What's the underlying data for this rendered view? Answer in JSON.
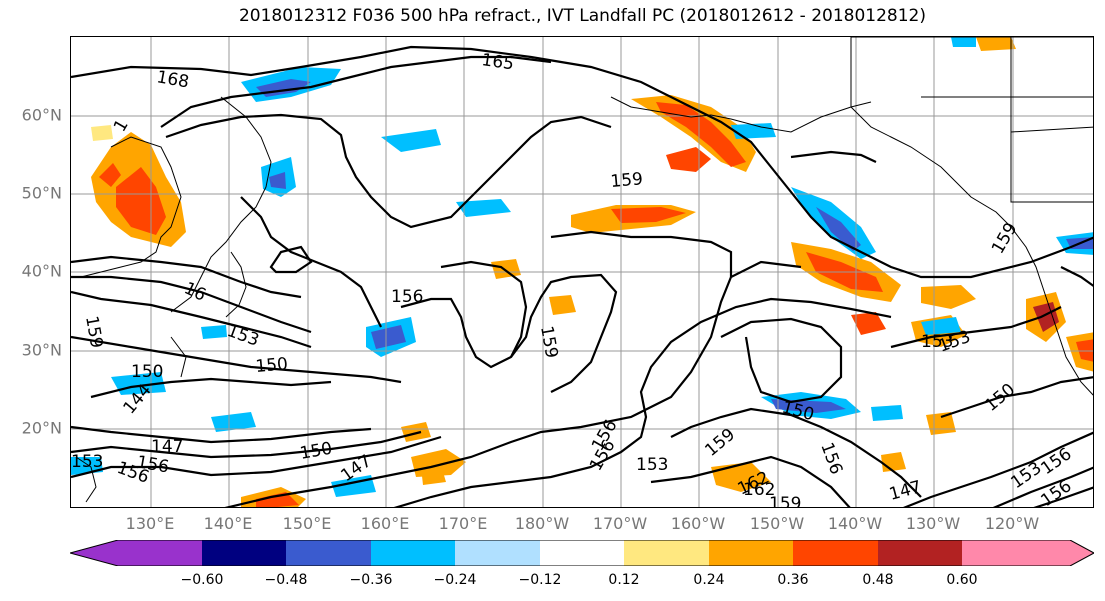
{
  "title": "2018012312 F036 500 hPa refract., IVT Landfall PC (2018012612 - 2018012812)",
  "lat_labels": [
    "60°N",
    "50°N",
    "40°N",
    "30°N",
    "20°N"
  ],
  "lon_labels": [
    "130°E",
    "140°E",
    "150°E",
    "160°E",
    "170°E",
    "180°W",
    "170°W",
    "160°W",
    "150°W",
    "140°W",
    "130°W",
    "120°W"
  ],
  "contour_labels": [
    "168",
    "165",
    "159",
    "156",
    "153",
    "150",
    "147",
    "144",
    "162",
    "16",
    "1",
    "159",
    "156",
    "153",
    "150",
    "147",
    "159",
    "156",
    "153",
    "150",
    "159",
    "156",
    "153",
    "150",
    "147",
    "159",
    "156",
    "153",
    "150",
    "162",
    "159",
    "156",
    "156",
    "153",
    "156"
  ],
  "colorbar": {
    "tick_labels": [
      "−0.60",
      "−0.48",
      "−0.36",
      "−0.24",
      "−0.12",
      "0.12",
      "0.24",
      "0.36",
      "0.48",
      "0.60"
    ],
    "colors": [
      "#9932cc",
      "#000080",
      "#3a5bcf",
      "#00bfff",
      "#b0e0ff",
      "#ffffff",
      "#ffe880",
      "#ffa500",
      "#ff4500",
      "#b22222",
      "#ff88aa"
    ]
  },
  "colors": {
    "contour": "#000000",
    "grid": "#999999",
    "coast": "#000000",
    "neg_light": "#b0e0ff",
    "neg_mid": "#00bfff",
    "neg_dark": "#3a5bcf",
    "pos_light": "#ffe880",
    "pos_mid": "#ffa500",
    "pos_dark": "#ff4500"
  }
}
